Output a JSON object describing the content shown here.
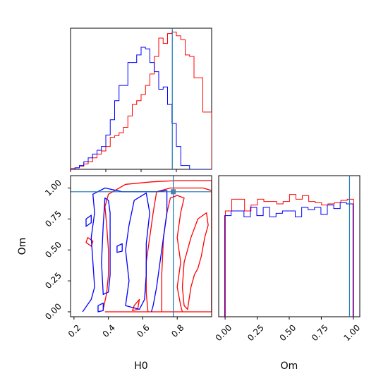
{
  "chart_data": [
    {
      "type": "histogram",
      "panel": "H0 marginal",
      "xlabel": "",
      "ylabel": "",
      "xlim": [
        0.2,
        1.0
      ],
      "truth": 0.777,
      "bin_edges": [
        0.2,
        0.225,
        0.25,
        0.275,
        0.3,
        0.325,
        0.35,
        0.375,
        0.4,
        0.425,
        0.45,
        0.475,
        0.5,
        0.525,
        0.55,
        0.575,
        0.6,
        0.625,
        0.65,
        0.675,
        0.7,
        0.725,
        0.75,
        0.775,
        0.8,
        0.825,
        0.85,
        0.875,
        0.9,
        0.925,
        0.95,
        0.975,
        1.0
      ],
      "ylim": [
        0,
        185
      ],
      "series": [
        {
          "color": "#ff0000",
          "counts": [
            1,
            2,
            4,
            7,
            10,
            15,
            20,
            24,
            30,
            42,
            44,
            48,
            55,
            70,
            85,
            90,
            98,
            110,
            125,
            148,
            172,
            165,
            178,
            180,
            175,
            170,
            150,
            148,
            120,
            120,
            75,
            75
          ]
        },
        {
          "color": "#0000ff",
          "counts": [
            0,
            2,
            5,
            10,
            15,
            20,
            25,
            30,
            45,
            65,
            90,
            110,
            110,
            140,
            140,
            150,
            160,
            158,
            140,
            128,
            105,
            108,
            85,
            60,
            30,
            5,
            5,
            0,
            0,
            0,
            0,
            0
          ]
        }
      ]
    },
    {
      "type": "contour",
      "panel": "H0 vs Om",
      "xlabel": "H0",
      "ylabel": "Om",
      "xlim": [
        0.18,
        1.0
      ],
      "ylim": [
        -0.04,
        1.1
      ],
      "xticks": [
        "0.2",
        "0.4",
        "0.6",
        "0.8"
      ],
      "yticks": [
        "0.00",
        "0.25",
        "0.50",
        "0.75",
        "1.00"
      ],
      "truth": {
        "x": 0.777,
        "y": 0.97
      },
      "series": [
        {
          "color": "#ff0000",
          "levels": [
            {
              "points": [
                [
                  0.37,
                  0.02
                ],
                [
                  0.39,
                  0.15
                ],
                [
                  0.4,
                  0.3
                ],
                [
                  0.4,
                  0.5
                ],
                [
                  0.39,
                  0.7
                ],
                [
                  0.38,
                  0.85
                ],
                [
                  0.4,
                  0.95
                ],
                [
                  0.5,
                  1.03
                ],
                [
                  0.65,
                  1.05
                ],
                [
                  0.8,
                  1.06
                ],
                [
                  0.95,
                  1.06
                ],
                [
                  1.0,
                  1.06
                ],
                [
                  1.0,
                  0.0
                ],
                [
                  0.38,
                  0.0
                ]
              ],
              "closed": false
            },
            {
              "points": [
                [
                  0.63,
                  0.0
                ],
                [
                  0.62,
                  0.15
                ],
                [
                  0.62,
                  0.4
                ],
                [
                  0.64,
                  0.6
                ],
                [
                  0.66,
                  0.8
                ],
                [
                  0.68,
                  0.97
                ],
                [
                  0.76,
                  1.0
                ],
                [
                  0.85,
                  1.0
                ],
                [
                  0.95,
                  1.0
                ],
                [
                  1.0,
                  0.98
                ],
                [
                  1.0,
                  0.0
                ]
              ],
              "closed": false
            },
            {
              "points": [
                [
                  0.71,
                  0.0
                ],
                [
                  0.71,
                  0.3
                ],
                [
                  0.72,
                  0.6
                ],
                [
                  0.74,
                  0.8
                ],
                [
                  0.76,
                  0.92
                ],
                [
                  0.8,
                  0.94
                ],
                [
                  0.84,
                  0.92
                ],
                [
                  0.82,
                  0.8
                ],
                [
                  0.8,
                  0.6
                ],
                [
                  0.82,
                  0.4
                ],
                [
                  0.8,
                  0.2
                ],
                [
                  0.82,
                  0.05
                ],
                [
                  0.83,
                  0.0
                ]
              ],
              "closed": false
            },
            {
              "points": [
                [
                  0.86,
                  0.02
                ],
                [
                  0.88,
                  0.2
                ],
                [
                  0.9,
                  0.3
                ],
                [
                  0.92,
                  0.35
                ],
                [
                  0.94,
                  0.45
                ],
                [
                  0.96,
                  0.6
                ],
                [
                  0.98,
                  0.7
                ],
                [
                  0.97,
                  0.8
                ],
                [
                  0.92,
                  0.75
                ],
                [
                  0.88,
                  0.6
                ],
                [
                  0.84,
                  0.4
                ],
                [
                  0.83,
                  0.2
                ],
                [
                  0.84,
                  0.05
                ]
              ],
              "closed": true
            },
            {
              "points": [
                [
                  0.28,
                  0.6
                ],
                [
                  0.31,
                  0.57
                ],
                [
                  0.3,
                  0.53
                ],
                [
                  0.27,
                  0.56
                ]
              ],
              "closed": true
            },
            {
              "points": [
                [
                  0.55,
                  0.05
                ],
                [
                  0.58,
                  0.1
                ],
                [
                  0.57,
                  0.02
                ],
                [
                  0.54,
                  0.01
                ]
              ],
              "closed": true
            }
          ]
        },
        {
          "color": "#0000ff",
          "levels": [
            {
              "points": [
                [
                  0.25,
                  0.0
                ],
                [
                  0.3,
                  0.1
                ],
                [
                  0.32,
                  0.2
                ],
                [
                  0.31,
                  0.4
                ],
                [
                  0.3,
                  0.6
                ],
                [
                  0.32,
                  0.8
                ],
                [
                  0.31,
                  0.95
                ],
                [
                  0.38,
                  1.0
                ],
                [
                  0.48,
                  0.97
                ],
                [
                  0.58,
                  0.97
                ],
                [
                  0.68,
                  0.97
                ],
                [
                  0.74,
                  0.98
                ],
                [
                  0.74,
                  0.8
                ],
                [
                  0.72,
                  0.6
                ],
                [
                  0.7,
                  0.4
                ],
                [
                  0.68,
                  0.2
                ],
                [
                  0.66,
                  0.05
                ],
                [
                  0.65,
                  0.0
                ]
              ],
              "closed": false
            },
            {
              "points": [
                [
                  0.5,
                  0.05
                ],
                [
                  0.52,
                  0.25
                ],
                [
                  0.5,
                  0.5
                ],
                [
                  0.52,
                  0.7
                ],
                [
                  0.55,
                  0.9
                ],
                [
                  0.62,
                  0.96
                ],
                [
                  0.64,
                  0.8
                ],
                [
                  0.62,
                  0.55
                ],
                [
                  0.62,
                  0.3
                ],
                [
                  0.61,
                  0.1
                ],
                [
                  0.58,
                  0.02
                ]
              ],
              "closed": true
            },
            {
              "points": [
                [
                  0.37,
                  0.14
                ],
                [
                  0.4,
                  0.16
                ],
                [
                  0.41,
                  0.3
                ],
                [
                  0.41,
                  0.55
                ],
                [
                  0.41,
                  0.8
                ],
                [
                  0.4,
                  0.9
                ],
                [
                  0.38,
                  0.92
                ],
                [
                  0.37,
                  0.7
                ],
                [
                  0.36,
                  0.4
                ]
              ],
              "closed": true
            },
            {
              "points": [
                [
                  0.27,
                  0.75
                ],
                [
                  0.3,
                  0.78
                ],
                [
                  0.3,
                  0.72
                ],
                [
                  0.27,
                  0.69
                ]
              ],
              "closed": true
            },
            {
              "points": [
                [
                  0.34,
                  0.05
                ],
                [
                  0.37,
                  0.07
                ],
                [
                  0.37,
                  0.01
                ],
                [
                  0.34,
                  0.0
                ]
              ],
              "closed": true
            },
            {
              "points": [
                [
                  0.45,
                  0.53
                ],
                [
                  0.48,
                  0.55
                ],
                [
                  0.48,
                  0.49
                ],
                [
                  0.45,
                  0.48
                ]
              ],
              "closed": true
            }
          ]
        }
      ]
    },
    {
      "type": "histogram",
      "panel": "Om marginal",
      "xlabel": "Om",
      "ylabel": "",
      "xlim": [
        -0.05,
        1.05
      ],
      "xticks": [
        "0.00",
        "0.25",
        "0.50",
        "0.75",
        "1.00"
      ],
      "truth": 0.97,
      "bin_edges": [
        0.0,
        0.05,
        0.1,
        0.15,
        0.2,
        0.25,
        0.3,
        0.35,
        0.4,
        0.45,
        0.5,
        0.55,
        0.6,
        0.65,
        0.7,
        0.75,
        0.8,
        0.85,
        0.9,
        0.95,
        1.0
      ],
      "ylim": [
        0,
        1.2
      ],
      "series": [
        {
          "color": "#ff0000",
          "counts": [
            0.9,
            1.0,
            1.0,
            0.9,
            0.95,
            1.0,
            0.98,
            0.98,
            0.96,
            0.98,
            1.04,
            1.0,
            1.03,
            0.98,
            0.97,
            0.95,
            0.96,
            0.97,
            0.99,
            1.0
          ]
        },
        {
          "color": "#0000ff",
          "counts": [
            0.86,
            0.9,
            0.9,
            0.85,
            0.93,
            0.86,
            0.93,
            0.85,
            0.88,
            0.9,
            0.9,
            0.85,
            0.93,
            0.91,
            0.93,
            0.87,
            0.95,
            0.92,
            0.97,
            0.96
          ]
        }
      ]
    }
  ]
}
